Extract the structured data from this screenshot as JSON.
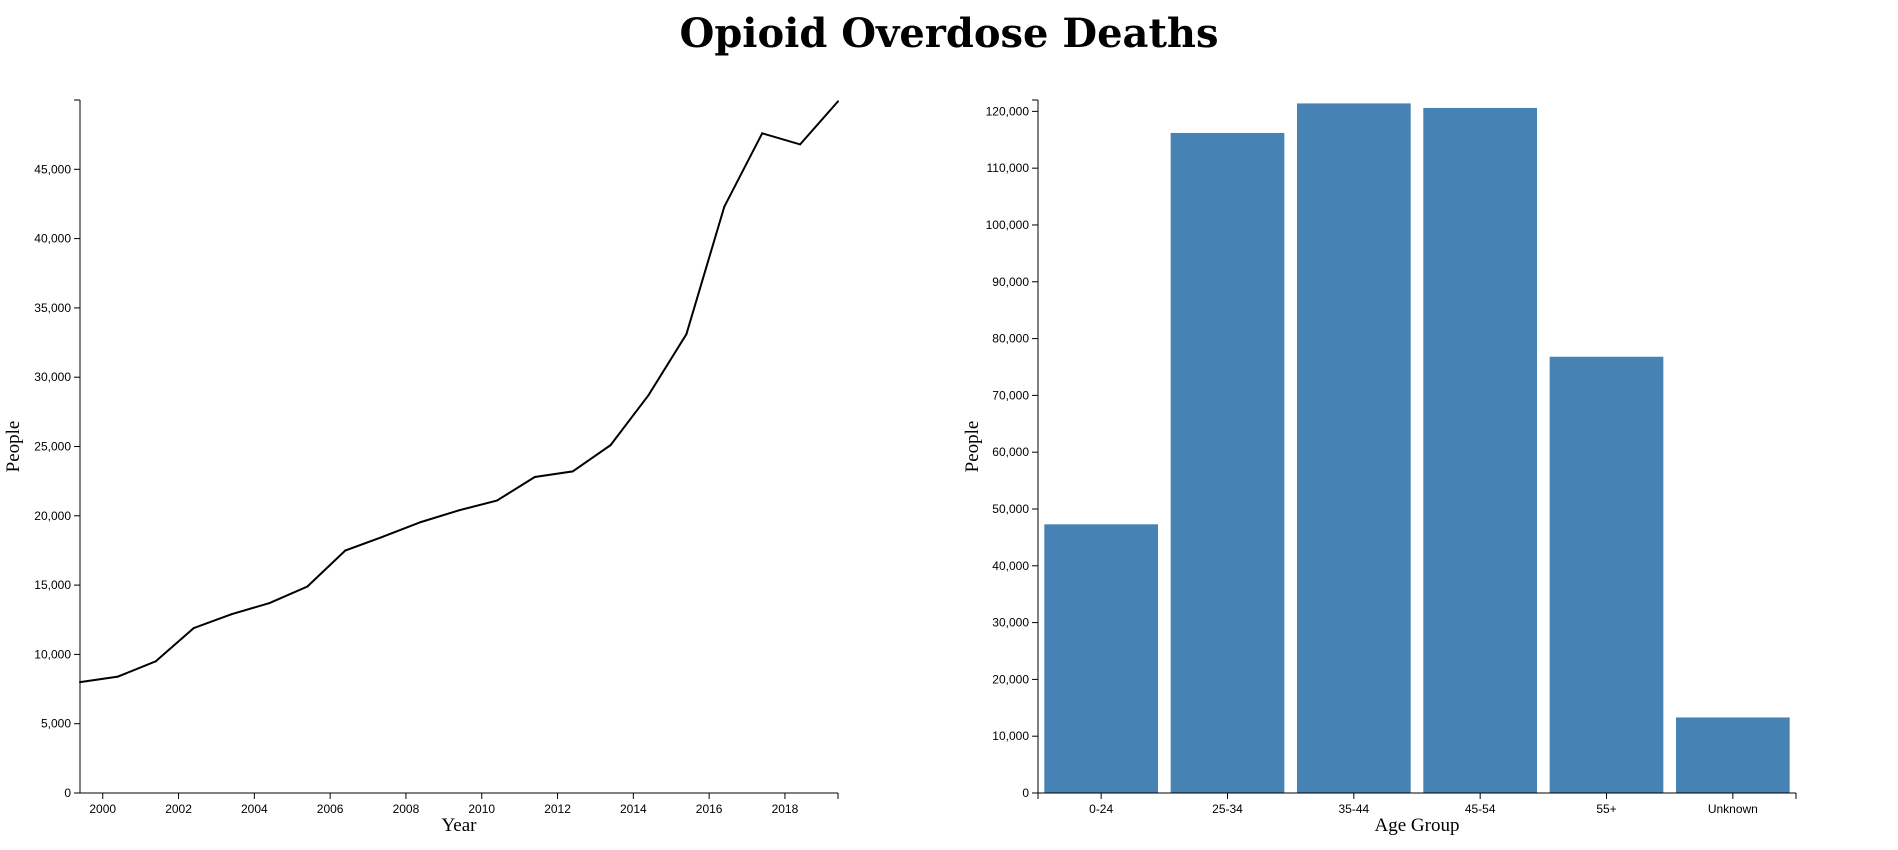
{
  "title": "Opioid Overdose Deaths",
  "colors": {
    "bar": "#4682b4",
    "line": "#000000"
  },
  "chart_data": [
    {
      "type": "line",
      "xlabel": "Year",
      "ylabel": "People",
      "xlim": [
        1999.4,
        2019.4
      ],
      "ylim": [
        0,
        50000
      ],
      "x_ticks": [
        2000,
        2002,
        2004,
        2006,
        2008,
        2010,
        2012,
        2014,
        2016,
        2018
      ],
      "y_ticks": [
        0,
        5000,
        10000,
        15000,
        20000,
        25000,
        30000,
        35000,
        40000,
        45000
      ],
      "x_tick_labels": [
        "2000",
        "2002",
        "2004",
        "2006",
        "2008",
        "2010",
        "2012",
        "2014",
        "2016",
        "2018"
      ],
      "y_tick_labels": [
        "0",
        "5,000",
        "10,000",
        "15,000",
        "20,000",
        "25,000",
        "30,000",
        "35,000",
        "40,000",
        "45,000"
      ],
      "x": [
        1999.4,
        2000.4,
        2001.4,
        2002.4,
        2003.4,
        2004.4,
        2005.4,
        2006.4,
        2007.4,
        2008.4,
        2009.4,
        2010.4,
        2011.4,
        2012.4,
        2013.4,
        2014.4,
        2015.4,
        2016.4,
        2017.4,
        2018.4,
        2019.4
      ],
      "values": [
        8000,
        8400,
        9500,
        11900,
        12900,
        13700,
        14900,
        17500,
        18500,
        19550,
        20400,
        21100,
        22800,
        23200,
        25100,
        28700,
        33100,
        42300,
        47600,
        46800,
        49900
      ]
    },
    {
      "type": "bar",
      "xlabel": "Age Group",
      "ylabel": "People",
      "ylim": [
        0,
        122000
      ],
      "categories": [
        "0-24",
        "25-34",
        "35-44",
        "45-54",
        "55+",
        "Unknown"
      ],
      "values": [
        47300,
        116200,
        121400,
        120600,
        76800,
        13300
      ],
      "y_ticks": [
        0,
        10000,
        20000,
        30000,
        40000,
        50000,
        60000,
        70000,
        80000,
        90000,
        100000,
        110000,
        120000
      ],
      "y_tick_labels": [
        "0",
        "10,000",
        "20,000",
        "30,000",
        "40,000",
        "50,000",
        "60,000",
        "70,000",
        "80,000",
        "90,000",
        "100,000",
        "110,000",
        "120,000"
      ]
    }
  ]
}
